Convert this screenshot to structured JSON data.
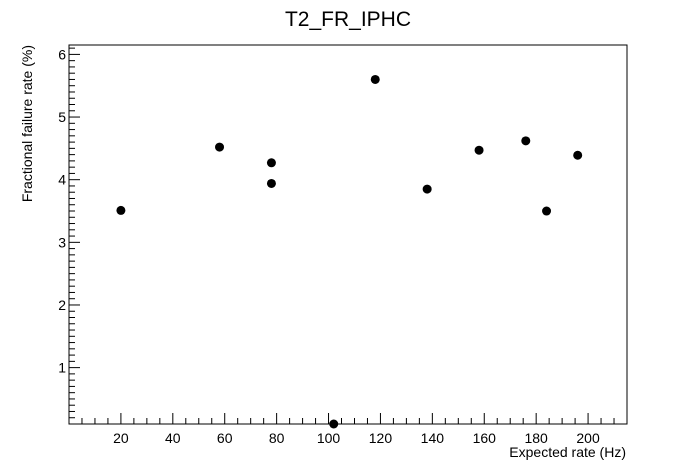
{
  "chart_data": {
    "type": "scatter",
    "title": "T2_FR_IPHC",
    "xlabel": "Expected rate (Hz)",
    "ylabel": "Fractional failure rate (%)",
    "xlim": [
      0,
      215
    ],
    "ylim": [
      0.1,
      6.15
    ],
    "x_ticks": [
      20,
      40,
      60,
      80,
      100,
      120,
      140,
      160,
      180,
      200
    ],
    "y_ticks": [
      1,
      2,
      3,
      4,
      5,
      6
    ],
    "grid": false,
    "series": [
      {
        "points": [
          {
            "x": 20,
            "y": 3.51
          },
          {
            "x": 58,
            "y": 4.52
          },
          {
            "x": 78,
            "y": 4.27
          },
          {
            "x": 78,
            "y": 3.94
          },
          {
            "x": 102,
            "y": 0.1
          },
          {
            "x": 118,
            "y": 5.6
          },
          {
            "x": 138,
            "y": 3.85
          },
          {
            "x": 158,
            "y": 4.47
          },
          {
            "x": 176,
            "y": 4.62
          },
          {
            "x": 184,
            "y": 3.5
          },
          {
            "x": 196,
            "y": 4.39
          }
        ]
      }
    ]
  }
}
